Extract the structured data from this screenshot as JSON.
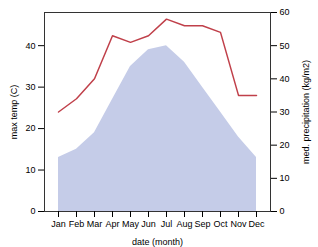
{
  "chart_data": {
    "type": "combo",
    "xlabel": "date (month)",
    "ylabel": "max temp (C)",
    "y2label": "med. precipitation (kg/m2)",
    "categories": [
      "Jan",
      "Feb",
      "Mar",
      "Apr",
      "May",
      "Jun",
      "Jul",
      "Aug",
      "Sep",
      "Oct",
      "Nov",
      "Dec"
    ],
    "series": [
      {
        "type": "area",
        "color": "#c5cce8",
        "values": [
          13,
          15,
          19,
          27,
          35,
          39,
          40,
          36,
          30,
          24,
          18,
          13
        ]
      },
      {
        "type": "line",
        "color": "#c0404a",
        "axis": "y2",
        "values": [
          30,
          34,
          40,
          53,
          51,
          53,
          58,
          56,
          56,
          54,
          35,
          35
        ]
      }
    ],
    "ylim": [
      0,
      48
    ],
    "yticks": [
      0,
      10,
      20,
      30,
      40
    ],
    "y2lim": [
      0,
      60
    ],
    "y2ticks": [
      0,
      10,
      20,
      30,
      40,
      50,
      60
    ]
  }
}
